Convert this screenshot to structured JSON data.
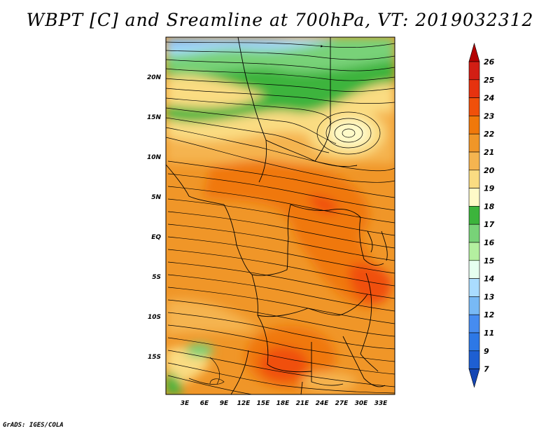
{
  "title": "WBPT [C] and Sreamline at 700hPa, VT: 2019032312",
  "credit": "GrADS: IGES/COLA",
  "map": {
    "region": "Central / East Africa",
    "variable": "Wet-bulb potential temperature (C)",
    "overlay": "Streamlines at 700hPa",
    "lat_labels": [
      "20N",
      "15N",
      "10N",
      "5N",
      "EQ",
      "5S",
      "10S",
      "15S"
    ],
    "lon_labels": [
      "3E",
      "6E",
      "9E",
      "12E",
      "15E",
      "18E",
      "21E",
      "24E",
      "27E",
      "30E",
      "33E"
    ]
  },
  "colorbar": {
    "labels": [
      "26",
      "25",
      "24",
      "23",
      "22",
      "21",
      "20",
      "19",
      "18",
      "17",
      "16",
      "15",
      "14",
      "13",
      "12",
      "11",
      "9",
      "7"
    ],
    "colors": [
      "#b40000",
      "#d21e14",
      "#e6320f",
      "#f0500a",
      "#f0780a",
      "#f09628",
      "#f5b450",
      "#fadc82",
      "#fffac8",
      "#3cb43c",
      "#78d278",
      "#b4f0a0",
      "#e6fff0",
      "#aadcff",
      "#78b9f5",
      "#468cf0",
      "#2d78e6",
      "#1e5fd2",
      "#1446b4"
    ]
  }
}
